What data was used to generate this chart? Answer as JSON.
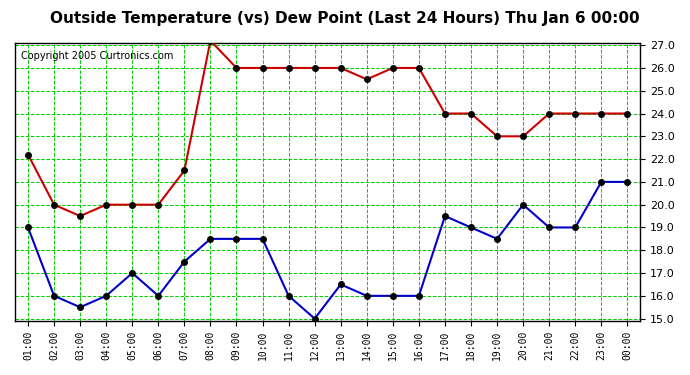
{
  "title": "Outside Temperature (vs) Dew Point (Last 24 Hours) Thu Jan 6 00:00",
  "copyright": "Copyright 2005 Curtronics.com",
  "x_labels": [
    "01:00",
    "02:00",
    "03:00",
    "04:00",
    "05:00",
    "06:00",
    "07:00",
    "08:00",
    "09:00",
    "10:00",
    "11:00",
    "12:00",
    "13:00",
    "14:00",
    "15:00",
    "16:00",
    "17:00",
    "18:00",
    "19:00",
    "20:00",
    "21:00",
    "22:00",
    "23:00",
    "00:00"
  ],
  "temp_red": [
    22.2,
    20.0,
    19.5,
    20.0,
    20.0,
    20.0,
    21.5,
    27.2,
    26.0,
    26.0,
    26.0,
    26.0,
    26.0,
    25.5,
    26.0,
    26.0,
    24.0,
    24.0,
    23.0,
    23.0,
    24.0,
    24.0,
    24.0,
    24.0
  ],
  "temp_blue": [
    19.0,
    16.0,
    15.5,
    16.0,
    17.0,
    16.0,
    17.5,
    18.5,
    18.5,
    18.5,
    16.0,
    15.0,
    16.5,
    16.0,
    16.0,
    16.0,
    19.5,
    19.0,
    18.5,
    20.0,
    19.0,
    19.0,
    21.0,
    21.0
  ],
  "ylim": [
    15.0,
    27.0
  ],
  "yticks": [
    15.0,
    16.0,
    17.0,
    18.0,
    19.0,
    20.0,
    21.0,
    22.0,
    23.0,
    24.0,
    25.0,
    26.0,
    27.0
  ],
  "red_color": "#cc0000",
  "blue_color": "#0000cc",
  "marker_color": "#000000",
  "grid_color": "#00cc00",
  "bg_color": "#ffffff",
  "title_fontsize": 11,
  "copyright_fontsize": 7
}
